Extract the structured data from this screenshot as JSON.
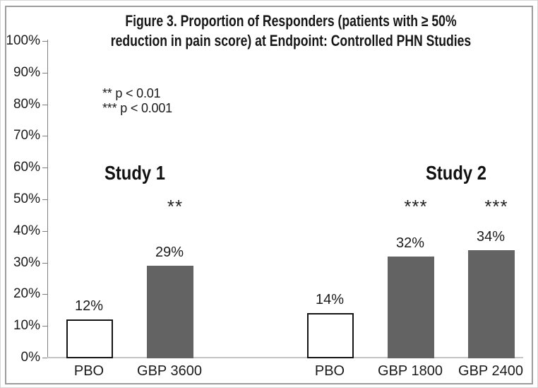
{
  "title": {
    "line1": "Figure 3. Proportion of Responders (patients with ≥ 50%",
    "line2": "reduction in pain score) at Endpoint: Controlled PHN Studies"
  },
  "legend": {
    "note1": "** p < 0.01",
    "note2": "*** p < 0.001"
  },
  "chart_data": {
    "type": "bar",
    "title": "Figure 3. Proportion of Responders (patients with ≥ 50% reduction in pain score) at Endpoint: Controlled PHN Studies",
    "xlabel": "",
    "ylabel": "",
    "ylim": [
      0,
      100
    ],
    "grid": false,
    "legend_position": "upper-left-inside",
    "ytick_values": [
      0,
      10,
      20,
      30,
      40,
      50,
      60,
      70,
      80,
      90,
      100
    ],
    "ytick_labels": [
      "0%",
      "10%",
      "20%",
      "30%",
      "40%",
      "50%",
      "60%",
      "70%",
      "80%",
      "90%",
      "100%"
    ],
    "significance_notes": [
      "** p < 0.01",
      "*** p < 0.001"
    ],
    "groups": [
      {
        "name": "Study 1",
        "bars": [
          {
            "category": "PBO",
            "value": 12,
            "value_label": "12%",
            "fill": "white",
            "significance": ""
          },
          {
            "category": "GBP 3600",
            "value": 29,
            "value_label": "29%",
            "fill": "gray",
            "significance": "**"
          }
        ]
      },
      {
        "name": "Study 2",
        "bars": [
          {
            "category": "PBO",
            "value": 14,
            "value_label": "14%",
            "fill": "white",
            "significance": ""
          },
          {
            "category": "GBP 1800",
            "value": 32,
            "value_label": "32%",
            "fill": "gray",
            "significance": "***"
          },
          {
            "category": "GBP 2400",
            "value": 34,
            "value_label": "34%",
            "fill": "gray",
            "significance": "***"
          }
        ]
      }
    ],
    "colors": {
      "bar_gray": "#636363",
      "bar_white": "#ffffff",
      "bar_border": "#141414",
      "axis": "#7f7f7f",
      "baseline": "#c4c4c4",
      "frame": "#9c9c9c",
      "text": "#1a1a1a"
    }
  }
}
